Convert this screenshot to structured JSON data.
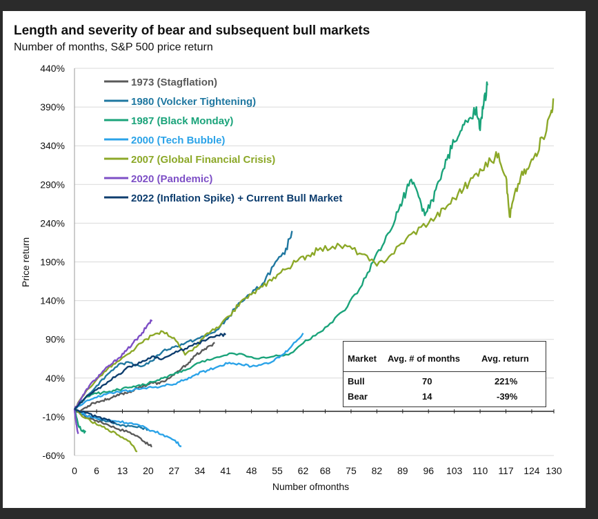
{
  "chart_data": {
    "type": "line",
    "title": "Length and severity of bear and subsequent bull markets",
    "subtitle": "Number of months, S&P 500 price return",
    "xlabel": "Number ofmonths",
    "ylabel": "Price return",
    "xlim": [
      0,
      130
    ],
    "ylim": [
      -60,
      440
    ],
    "x_ticks": [
      "0",
      "6",
      "13",
      "20",
      "27",
      "34",
      "41",
      "48",
      "55",
      "62",
      "68",
      "75",
      "82",
      "89",
      "96",
      "103",
      "110",
      "117",
      "124",
      "130"
    ],
    "y_ticks": [
      "440%",
      "390%",
      "340%",
      "290%",
      "240%",
      "190%",
      "140%",
      "90%",
      "40%",
      "-10%",
      "-60%"
    ],
    "series": [
      {
        "name": "1973 (Stagflation)",
        "color": "#595959",
        "bull": [
          [
            0,
            0
          ],
          [
            1,
            -4
          ],
          [
            3,
            2
          ],
          [
            5,
            8
          ],
          [
            7,
            10
          ],
          [
            9,
            13
          ],
          [
            11,
            16
          ],
          [
            13,
            20
          ],
          [
            15,
            22
          ],
          [
            17,
            27
          ],
          [
            19,
            30
          ],
          [
            21,
            34
          ],
          [
            23,
            33
          ],
          [
            25,
            38
          ],
          [
            27,
            44
          ],
          [
            29,
            52
          ],
          [
            31,
            60
          ],
          [
            33,
            70
          ],
          [
            35,
            76
          ],
          [
            37,
            82
          ],
          [
            38,
            86
          ]
        ],
        "bear": [
          [
            0,
            0
          ],
          [
            3,
            -10
          ],
          [
            6,
            -15
          ],
          [
            9,
            -20
          ],
          [
            12,
            -26
          ],
          [
            15,
            -30
          ],
          [
            18,
            -38
          ],
          [
            20,
            -46
          ],
          [
            21,
            -48
          ]
        ]
      },
      {
        "name": "1980 (Volcker Tightening)",
        "color": "#1f77a0",
        "bull": [
          [
            0,
            0
          ],
          [
            3,
            15
          ],
          [
            6,
            30
          ],
          [
            9,
            45
          ],
          [
            12,
            58
          ],
          [
            15,
            60
          ],
          [
            18,
            55
          ],
          [
            21,
            62
          ],
          [
            24,
            75
          ],
          [
            27,
            80
          ],
          [
            30,
            85
          ],
          [
            33,
            90
          ],
          [
            36,
            95
          ],
          [
            39,
            103
          ],
          [
            42,
            120
          ],
          [
            45,
            138
          ],
          [
            48,
            148
          ],
          [
            51,
            162
          ],
          [
            54,
            185
          ],
          [
            57,
            200
          ],
          [
            59,
            230
          ]
        ],
        "bear": [
          [
            0,
            0
          ],
          [
            3,
            -8
          ],
          [
            6,
            -12
          ],
          [
            9,
            -16
          ],
          [
            12,
            -20
          ],
          [
            15,
            -22
          ],
          [
            18,
            -24
          ],
          [
            20,
            -26
          ]
        ]
      },
      {
        "name": "1987 (Black Monday)",
        "color": "#1aa37a",
        "bull": [
          [
            0,
            0
          ],
          [
            3,
            15
          ],
          [
            6,
            20
          ],
          [
            9,
            22
          ],
          [
            12,
            25
          ],
          [
            15,
            28
          ],
          [
            18,
            30
          ],
          [
            21,
            35
          ],
          [
            24,
            40
          ],
          [
            27,
            45
          ],
          [
            30,
            50
          ],
          [
            34,
            60
          ],
          [
            38,
            66
          ],
          [
            42,
            72
          ],
          [
            46,
            70
          ],
          [
            50,
            65
          ],
          [
            54,
            68
          ],
          [
            58,
            70
          ],
          [
            62,
            85
          ],
          [
            66,
            98
          ],
          [
            70,
            112
          ],
          [
            74,
            132
          ],
          [
            78,
            160
          ],
          [
            81,
            190
          ],
          [
            84,
            215
          ],
          [
            87,
            245
          ],
          [
            89,
            270
          ],
          [
            91,
            295
          ],
          [
            93,
            280
          ],
          [
            95,
            250
          ],
          [
            97,
            270
          ],
          [
            99,
            295
          ],
          [
            101,
            322
          ],
          [
            103,
            345
          ],
          [
            105,
            360
          ],
          [
            107,
            375
          ],
          [
            109,
            390
          ],
          [
            110,
            360
          ],
          [
            111,
            395
          ],
          [
            112,
            418
          ]
        ],
        "bear": [
          [
            0,
            0
          ],
          [
            1,
            -20
          ],
          [
            2,
            -28
          ],
          [
            3,
            -30
          ]
        ]
      },
      {
        "name": "2000 (Tech Bubble)",
        "color": "#2ba3e8",
        "bull": [
          [
            0,
            0
          ],
          [
            3,
            10
          ],
          [
            6,
            15
          ],
          [
            9,
            20
          ],
          [
            12,
            22
          ],
          [
            15,
            24
          ],
          [
            18,
            26
          ],
          [
            21,
            28
          ],
          [
            24,
            30
          ],
          [
            27,
            32
          ],
          [
            30,
            38
          ],
          [
            33,
            45
          ],
          [
            36,
            50
          ],
          [
            39,
            55
          ],
          [
            42,
            60
          ],
          [
            45,
            58
          ],
          [
            48,
            55
          ],
          [
            51,
            58
          ],
          [
            54,
            62
          ],
          [
            57,
            72
          ],
          [
            59,
            82
          ],
          [
            62,
            98
          ]
        ],
        "bear": [
          [
            0,
            0
          ],
          [
            3,
            -8
          ],
          [
            6,
            -12
          ],
          [
            9,
            -14
          ],
          [
            12,
            -16
          ],
          [
            15,
            -18
          ],
          [
            18,
            -22
          ],
          [
            21,
            -28
          ],
          [
            24,
            -33
          ],
          [
            27,
            -40
          ],
          [
            29,
            -48
          ]
        ]
      },
      {
        "name": "2007 (Global Financial Crisis)",
        "color": "#8ca828",
        "bull": [
          [
            0,
            0
          ],
          [
            3,
            22
          ],
          [
            6,
            38
          ],
          [
            9,
            52
          ],
          [
            12,
            62
          ],
          [
            15,
            72
          ],
          [
            18,
            85
          ],
          [
            21,
            95
          ],
          [
            24,
            100
          ],
          [
            27,
            92
          ],
          [
            30,
            70
          ],
          [
            33,
            80
          ],
          [
            36,
            98
          ],
          [
            39,
            105
          ],
          [
            42,
            120
          ],
          [
            45,
            138
          ],
          [
            48,
            148
          ],
          [
            51,
            158
          ],
          [
            54,
            170
          ],
          [
            57,
            180
          ],
          [
            60,
            190
          ],
          [
            63,
            198
          ],
          [
            66,
            205
          ],
          [
            70,
            210
          ],
          [
            74,
            210
          ],
          [
            78,
            200
          ],
          [
            82,
            185
          ],
          [
            86,
            200
          ],
          [
            90,
            220
          ],
          [
            94,
            235
          ],
          [
            98,
            248
          ],
          [
            101,
            262
          ],
          [
            104,
            278
          ],
          [
            107,
            292
          ],
          [
            110,
            310
          ],
          [
            113,
            320
          ],
          [
            115,
            330
          ],
          [
            117,
            300
          ],
          [
            118,
            248
          ],
          [
            119,
            270
          ],
          [
            121,
            300
          ],
          [
            123,
            310
          ],
          [
            125,
            330
          ],
          [
            127,
            350
          ],
          [
            129,
            380
          ],
          [
            130,
            400
          ]
        ],
        "bear": [
          [
            0,
            0
          ],
          [
            3,
            -12
          ],
          [
            6,
            -20
          ],
          [
            9,
            -26
          ],
          [
            12,
            -34
          ],
          [
            15,
            -42
          ],
          [
            17,
            -55
          ]
        ]
      },
      {
        "name": "2020 (Pandemic)",
        "color": "#7d4fc6",
        "bull": [
          [
            0,
            0
          ],
          [
            2,
            15
          ],
          [
            4,
            30
          ],
          [
            6,
            40
          ],
          [
            8,
            50
          ],
          [
            10,
            58
          ],
          [
            12,
            66
          ],
          [
            14,
            75
          ],
          [
            16,
            86
          ],
          [
            18,
            95
          ],
          [
            20,
            110
          ],
          [
            21,
            115
          ]
        ],
        "bear": [
          [
            0,
            0
          ],
          [
            0.5,
            -20
          ],
          [
            1,
            -32
          ]
        ]
      },
      {
        "name": "2022 (Inflation Spike) + Current Bull Market",
        "color": "#0d3d6e",
        "bull": [
          [
            0,
            0
          ],
          [
            3,
            15
          ],
          [
            6,
            25
          ],
          [
            9,
            35
          ],
          [
            12,
            45
          ],
          [
            15,
            55
          ],
          [
            18,
            60
          ],
          [
            21,
            68
          ],
          [
            24,
            65
          ],
          [
            27,
            72
          ],
          [
            30,
            78
          ],
          [
            33,
            84
          ],
          [
            36,
            90
          ],
          [
            39,
            95
          ],
          [
            41,
            96
          ]
        ],
        "bear": [
          [
            0,
            0
          ],
          [
            3,
            -5
          ],
          [
            6,
            -10
          ],
          [
            9,
            -14
          ],
          [
            11,
            -18
          ]
        ]
      }
    ],
    "legend_position": "top-left",
    "table": {
      "headers": [
        "Market",
        "Avg. # of months",
        "Avg. return"
      ],
      "rows": [
        [
          "Bull",
          "70",
          "221%"
        ],
        [
          "Bear",
          "14",
          "-39%"
        ]
      ]
    }
  }
}
